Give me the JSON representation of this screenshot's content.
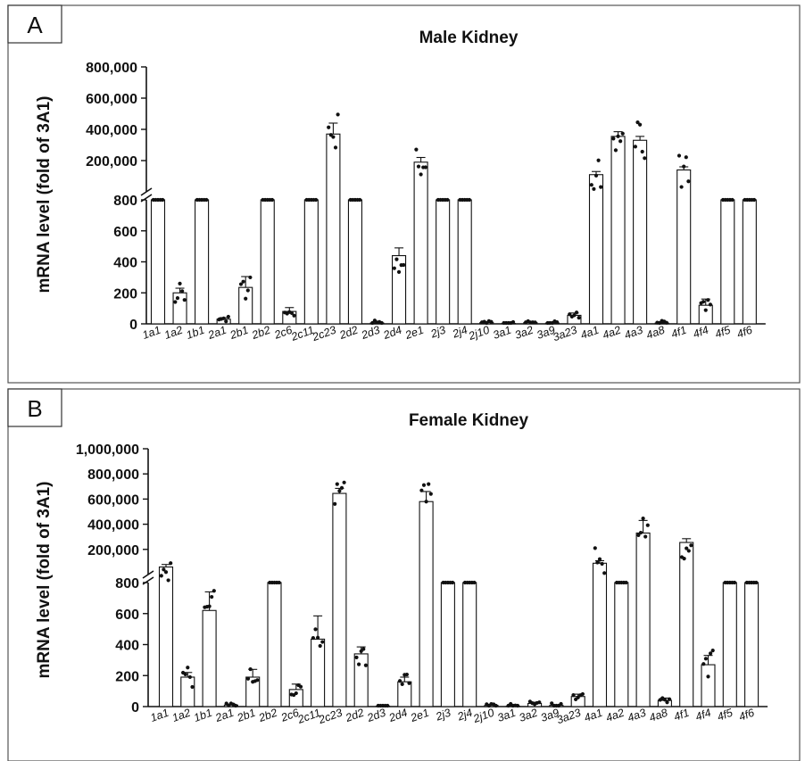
{
  "chart_data": [
    {
      "panel": "A",
      "type": "bar",
      "title": "Male Kidney",
      "ylabel": "mRNA level (fold of 3A1)",
      "xlabel": "",
      "axis_break": {
        "lower_ylim": [
          0,
          800
        ],
        "upper_ylim": [
          0,
          800000
        ]
      },
      "lower_ticks": [
        "0",
        "200",
        "400",
        "600",
        "800"
      ],
      "upper_ticks": [
        "200,000",
        "400,000",
        "600,000",
        "800,000"
      ],
      "categories": [
        "1a1",
        "1a2",
        "1b1",
        "2a1",
        "2b1",
        "2b2",
        "2c6",
        "2c11",
        "2c23",
        "2d2",
        "2d3",
        "2d4",
        "2e1",
        "2j3",
        "2j4",
        "2j10",
        "3a1",
        "3a2",
        "3a9",
        "3a23",
        "4a1",
        "4a2",
        "4a3",
        "4a8",
        "4f1",
        "4f4",
        "4f5",
        "4f6"
      ],
      "values": [
        800,
        200,
        800,
        30,
        235,
        800,
        80,
        800,
        370000,
        800,
        5,
        440,
        190000,
        800,
        800,
        8,
        3,
        8,
        5,
        55,
        110000,
        355000,
        330000,
        5,
        140000,
        120,
        800,
        800
      ],
      "errors": [
        0,
        30,
        0,
        10,
        70,
        0,
        25,
        0,
        70000,
        0,
        2,
        50,
        30000,
        0,
        0,
        3,
        1,
        3,
        2,
        15,
        20000,
        30000,
        25000,
        2,
        20000,
        40,
        0,
        0
      ]
    },
    {
      "panel": "B",
      "type": "bar",
      "title": "Female Kidney",
      "ylabel": "mRNA level (fold of 3A1)",
      "xlabel": "",
      "axis_break": {
        "lower_ylim": [
          0,
          800
        ],
        "upper_ylim": [
          0,
          1000000
        ]
      },
      "lower_ticks": [
        "0",
        "200",
        "400",
        "600",
        "800"
      ],
      "upper_ticks": [
        "200,000",
        "400,000",
        "600,000",
        "800,000",
        "1,000,000"
      ],
      "categories": [
        "1a1",
        "1a2",
        "1b1",
        "2a1",
        "2b1",
        "2b2",
        "2c6",
        "2c11",
        "2c23",
        "2d2",
        "2d3",
        "2d4",
        "2e1",
        "2j3",
        "2j4",
        "2j10",
        "3a1",
        "3a2",
        "3a9",
        "3a23",
        "4a1",
        "4a2",
        "4a3",
        "4a8",
        "4f1",
        "4f4",
        "4f5",
        "4f6"
      ],
      "values": [
        60000,
        190,
        620,
        10,
        190,
        800,
        110,
        435,
        645000,
        340,
        3,
        160,
        580000,
        800,
        800,
        8,
        3,
        20,
        8,
        65,
        90000,
        800,
        330000,
        40,
        255000,
        270,
        800,
        800
      ],
      "errors": [
        20000,
        30,
        120,
        5,
        50,
        0,
        35,
        150,
        40000,
        45,
        1,
        30,
        80000,
        0,
        0,
        3,
        1,
        8,
        3,
        15,
        20000,
        0,
        100000,
        15,
        30000,
        60,
        0,
        0
      ]
    }
  ]
}
